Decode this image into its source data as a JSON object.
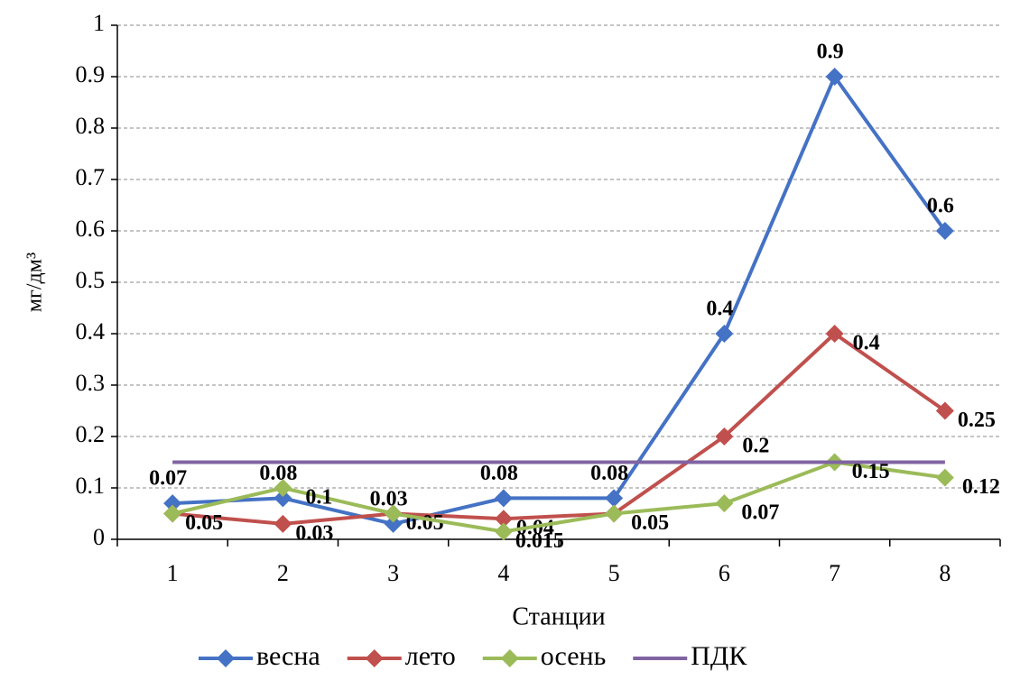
{
  "chart_data": {
    "type": "line",
    "x_label": "Станции",
    "y_label": "мг/дм³",
    "categories": [
      "1",
      "2",
      "3",
      "4",
      "5",
      "6",
      "7",
      "8"
    ],
    "series": [
      {
        "name": "весна",
        "color": "#4472c4",
        "marker": "diamond",
        "values": [
          0.07,
          0.08,
          0.03,
          0.08,
          0.08,
          0.4,
          0.9,
          0.6
        ],
        "value_labels": [
          "0.07",
          "0.08",
          "0.03",
          "0.08",
          "0.08",
          "0.4",
          "0.9",
          "0.6"
        ]
      },
      {
        "name": "лето",
        "color": "#c0504d",
        "marker": "diamond",
        "values": [
          0.05,
          0.03,
          0.05,
          0.04,
          0.05,
          0.2,
          0.4,
          0.25
        ],
        "value_labels": [
          "0.05",
          "0.03",
          "0.05",
          "0.04",
          null,
          "0.2",
          "0.4",
          "0.25"
        ]
      },
      {
        "name": "осень",
        "color": "#9bbb59",
        "marker": "diamond",
        "values": [
          0.05,
          0.1,
          0.05,
          0.015,
          0.05,
          0.07,
          0.15,
          0.12
        ],
        "value_labels": [
          null,
          "0.1",
          null,
          "0.015",
          "0.05",
          "0.07",
          "0.15",
          "0.12"
        ]
      },
      {
        "name": "ПДК",
        "color": "#8064a2",
        "marker": "none",
        "values": [
          0.15,
          0.15,
          0.15,
          0.15,
          0.15,
          0.15,
          0.15,
          0.15
        ]
      }
    ],
    "ylim": [
      0,
      1
    ],
    "yticks": [
      0,
      0.1,
      0.2,
      0.3,
      0.4,
      0.5,
      0.6,
      0.7,
      0.8,
      0.9,
      1
    ],
    "grid": true,
    "legend": "bottom"
  }
}
